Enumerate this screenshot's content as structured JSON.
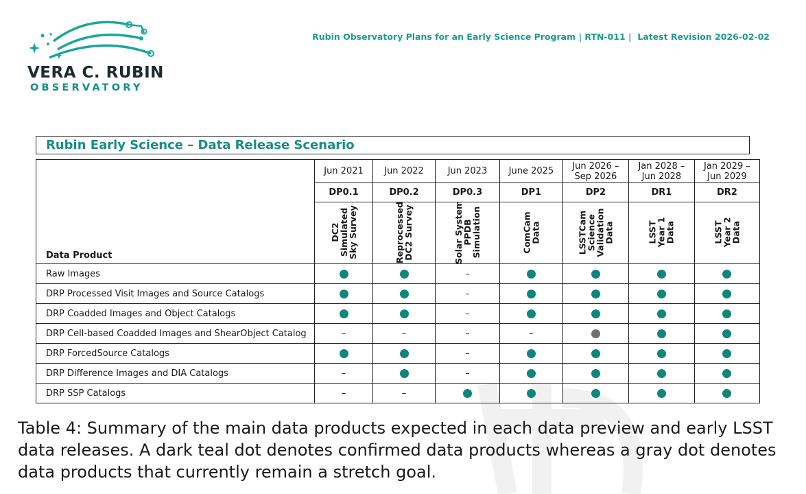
{
  "logo": {
    "line1": "VERA C. RUBIN",
    "line2": "OBSERVATORY"
  },
  "header": {
    "text": "Rubin Observatory Plans for an Early Science Program | RTN-011 |  Latest Revision 2026-02-02"
  },
  "colors": {
    "teal": "#10857c",
    "gray": "#707070",
    "heading_teal": "#168e84"
  },
  "table": {
    "title": "Rubin Early Science – Data Release Scenario",
    "row_header": "Data Product",
    "columns": [
      {
        "date": "Jun 2021",
        "code": "DP0.1",
        "desc": [
          "DC2",
          "Simulated",
          "Sky Survey"
        ]
      },
      {
        "date": "Jun 2022",
        "code": "DP0.2",
        "desc": [
          "Reprocessed",
          "DC2 Survey"
        ]
      },
      {
        "date": "Jun 2023",
        "code": "DP0.3",
        "desc": [
          "Solar System",
          "PPDB",
          "Simulation"
        ]
      },
      {
        "date": "June 2025",
        "code": "DP1",
        "desc": [
          "ComCam",
          "Data"
        ]
      },
      {
        "date": "Jun 2026 – Sep 2026",
        "code": "DP2",
        "desc": [
          "LSSTCam",
          "Science",
          "Validation",
          "Data"
        ]
      },
      {
        "date": "Jan 2028 – Jun 2028",
        "code": "DR1",
        "desc": [
          "LSST",
          "Year 1",
          "Data"
        ]
      },
      {
        "date": "Jan 2029 – Jun 2029",
        "code": "DR2",
        "desc": [
          "LSST",
          "Year 2",
          "Data"
        ]
      }
    ],
    "rows": [
      {
        "label": "Raw Images",
        "cells": [
          "teal",
          "teal",
          "dash",
          "teal",
          "teal",
          "teal",
          "teal"
        ]
      },
      {
        "label": "DRP Processed Visit Images and Source Catalogs",
        "cells": [
          "teal",
          "teal",
          "dash",
          "teal",
          "teal",
          "teal",
          "teal"
        ]
      },
      {
        "label": "DRP Coadded Images and Object Catalogs",
        "cells": [
          "teal",
          "teal",
          "dash",
          "teal",
          "teal",
          "teal",
          "teal"
        ]
      },
      {
        "label": "DRP Cell-based Coadded Images and ShearObject Catalog",
        "cells": [
          "dash",
          "dash",
          "dash",
          "dash",
          "gray",
          "teal",
          "teal"
        ]
      },
      {
        "label": "DRP ForcedSource Catalogs",
        "cells": [
          "teal",
          "teal",
          "dash",
          "teal",
          "teal",
          "teal",
          "teal"
        ]
      },
      {
        "label": "DRP Difference Images and DIA Catalogs",
        "cells": [
          "dash",
          "teal",
          "dash",
          "teal",
          "teal",
          "teal",
          "teal"
        ]
      },
      {
        "label": "DRP SSP Catalogs",
        "cells": [
          "dash",
          "dash",
          "teal",
          "teal",
          "teal",
          "teal",
          "teal"
        ]
      }
    ],
    "dash_symbol": "–"
  },
  "caption": "Table 4: Summary of the main data products expected in each data preview and early LSST data releases. A dark teal dot denotes confirmed data products whereas a gray dot denotes data products that currently remain a stretch goal."
}
